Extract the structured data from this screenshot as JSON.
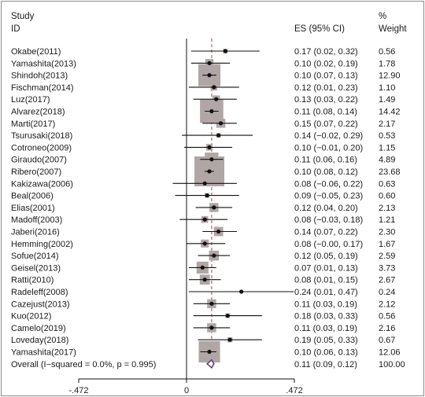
{
  "header": {
    "study_line1": "Study",
    "study_line2": "ID",
    "es_label": "ES (95% CI)",
    "weight_line1": "%",
    "weight_line2": "Weight"
  },
  "chart_data": {
    "type": "forest",
    "title": "",
    "xlabel": "",
    "ylabel": "",
    "x_ticks": [
      -0.472,
      0,
      0.472
    ],
    "x_tick_labels": [
      "-.472",
      "0",
      ".472"
    ],
    "xlim": [
      -0.472,
      0.472
    ],
    "reference_line": 0,
    "overall_line": 0.11,
    "studies": [
      {
        "id": "Okabe(2011)",
        "es": 0.17,
        "lo": 0.02,
        "hi": 0.32,
        "ci_text": "0.17 (0.02, 0.32)",
        "weight": 0.56,
        "weight_text": "0.56"
      },
      {
        "id": "Yamashita(2013)",
        "es": 0.1,
        "lo": 0.02,
        "hi": 0.19,
        "ci_text": "0.10 (0.02, 0.19)",
        "weight": 1.78,
        "weight_text": "1.78"
      },
      {
        "id": "Shindoh(2013)",
        "es": 0.1,
        "lo": 0.07,
        "hi": 0.13,
        "ci_text": "0.10 (0.07, 0.13)",
        "weight": 12.9,
        "weight_text": "12.90"
      },
      {
        "id": "Fischman(2014)",
        "es": 0.12,
        "lo": 0.01,
        "hi": 0.23,
        "ci_text": "0.12 (0.01, 0.23)",
        "weight": 1.1,
        "weight_text": "1.10"
      },
      {
        "id": "Luz(2017)",
        "es": 0.13,
        "lo": 0.03,
        "hi": 0.22,
        "ci_text": "0.13 (0.03, 0.22)",
        "weight": 1.49,
        "weight_text": "1.49"
      },
      {
        "id": "Alvarez(2018)",
        "es": 0.11,
        "lo": 0.08,
        "hi": 0.14,
        "ci_text": "0.11 (0.08, 0.14)",
        "weight": 14.42,
        "weight_text": "14.42"
      },
      {
        "id": "Marti(2017)",
        "es": 0.15,
        "lo": 0.07,
        "hi": 0.22,
        "ci_text": "0.15 (0.07, 0.22)",
        "weight": 2.17,
        "weight_text": "2.17"
      },
      {
        "id": "Tsurusaki(2018)",
        "es": 0.14,
        "lo": -0.02,
        "hi": 0.29,
        "ci_text": "0.14 (−0.02, 0.29)",
        "weight": 0.53,
        "weight_text": "0.53"
      },
      {
        "id": "Cotroneo(2009)",
        "es": 0.1,
        "lo": -0.01,
        "hi": 0.2,
        "ci_text": "0.10 (−0.01, 0.20)",
        "weight": 1.15,
        "weight_text": "1.15"
      },
      {
        "id": "Giraudo(2007)",
        "es": 0.11,
        "lo": 0.06,
        "hi": 0.16,
        "ci_text": "0.11 (0.06, 0.16)",
        "weight": 4.89,
        "weight_text": "4.89"
      },
      {
        "id": "Ribero(2007)",
        "es": 0.1,
        "lo": 0.08,
        "hi": 0.12,
        "ci_text": "0.10 (0.08, 0.12)",
        "weight": 23.68,
        "weight_text": "23.68"
      },
      {
        "id": "Kakizawa(2006)",
        "es": 0.08,
        "lo": -0.06,
        "hi": 0.22,
        "ci_text": "0.08 (−0.06, 0.22)",
        "weight": 0.63,
        "weight_text": "0.63"
      },
      {
        "id": "Beal(2006)",
        "es": 0.09,
        "lo": -0.05,
        "hi": 0.23,
        "ci_text": "0.09 (−0.05, 0.23)",
        "weight": 0.6,
        "weight_text": "0.60"
      },
      {
        "id": "Elias(2001)",
        "es": 0.12,
        "lo": 0.04,
        "hi": 0.2,
        "ci_text": "0.12 (0.04, 0.20)",
        "weight": 2.13,
        "weight_text": "2.13"
      },
      {
        "id": "Madoff(2003)",
        "es": 0.08,
        "lo": -0.03,
        "hi": 0.18,
        "ci_text": "0.08 (−0.03, 0.18)",
        "weight": 1.21,
        "weight_text": "1.21"
      },
      {
        "id": "Jaberi(2016)",
        "es": 0.14,
        "lo": 0.07,
        "hi": 0.22,
        "ci_text": "0.14 (0.07, 0.22)",
        "weight": 2.3,
        "weight_text": "2.30"
      },
      {
        "id": "Hemming(2002)",
        "es": 0.08,
        "lo": -0.0,
        "hi": 0.17,
        "ci_text": "0.08 (−0.00, 0.17)",
        "weight": 1.67,
        "weight_text": "1.67"
      },
      {
        "id": "Sofue(2014)",
        "es": 0.12,
        "lo": 0.05,
        "hi": 0.19,
        "ci_text": "0.12 (0.05, 0.19)",
        "weight": 2.59,
        "weight_text": "2.59"
      },
      {
        "id": "Geisel(2013)",
        "es": 0.07,
        "lo": 0.01,
        "hi": 0.13,
        "ci_text": "0.07 (0.01, 0.13)",
        "weight": 3.73,
        "weight_text": "3.73"
      },
      {
        "id": "Ratti(2010)",
        "es": 0.08,
        "lo": 0.01,
        "hi": 0.15,
        "ci_text": "0.08 (0.01, 0.15)",
        "weight": 2.67,
        "weight_text": "2.67"
      },
      {
        "id": "Radeleff(2008)",
        "es": 0.24,
        "lo": 0.01,
        "hi": 0.47,
        "ci_text": "0.24 (0.01, 0.47)",
        "weight": 0.24,
        "weight_text": "0.24"
      },
      {
        "id": "Cazejust(2013)",
        "es": 0.11,
        "lo": 0.03,
        "hi": 0.19,
        "ci_text": "0.11 (0.03, 0.19)",
        "weight": 2.12,
        "weight_text": "2.12"
      },
      {
        "id": "Kuo(2012)",
        "es": 0.18,
        "lo": 0.03,
        "hi": 0.33,
        "ci_text": "0.18 (0.03, 0.33)",
        "weight": 0.56,
        "weight_text": "0.56"
      },
      {
        "id": "Camelo(2019)",
        "es": 0.11,
        "lo": 0.03,
        "hi": 0.19,
        "ci_text": "0.11 (0.03, 0.19)",
        "weight": 2.16,
        "weight_text": "2.16"
      },
      {
        "id": "Loveday(2018)",
        "es": 0.19,
        "lo": 0.05,
        "hi": 0.33,
        "ci_text": "0.19 (0.05, 0.33)",
        "weight": 0.67,
        "weight_text": "0.67"
      },
      {
        "id": "Yamashita(2017)",
        "es": 0.1,
        "lo": 0.06,
        "hi": 0.13,
        "ci_text": "0.10 (0.06, 0.13)",
        "weight": 12.06,
        "weight_text": "12.06"
      }
    ],
    "overall": {
      "label": "Overall  (I−squared = 0.0%, p = 0.995)",
      "es": 0.11,
      "lo": 0.09,
      "hi": 0.12,
      "ci_text": "0.11 (0.09, 0.12)",
      "weight_text": "100.00"
    },
    "colors": {
      "box": "#b0a6a6",
      "line": "#111111",
      "reference_line": "#111111",
      "overall_line": "#b0413e",
      "diamond_stroke": "#6b3a78"
    }
  }
}
